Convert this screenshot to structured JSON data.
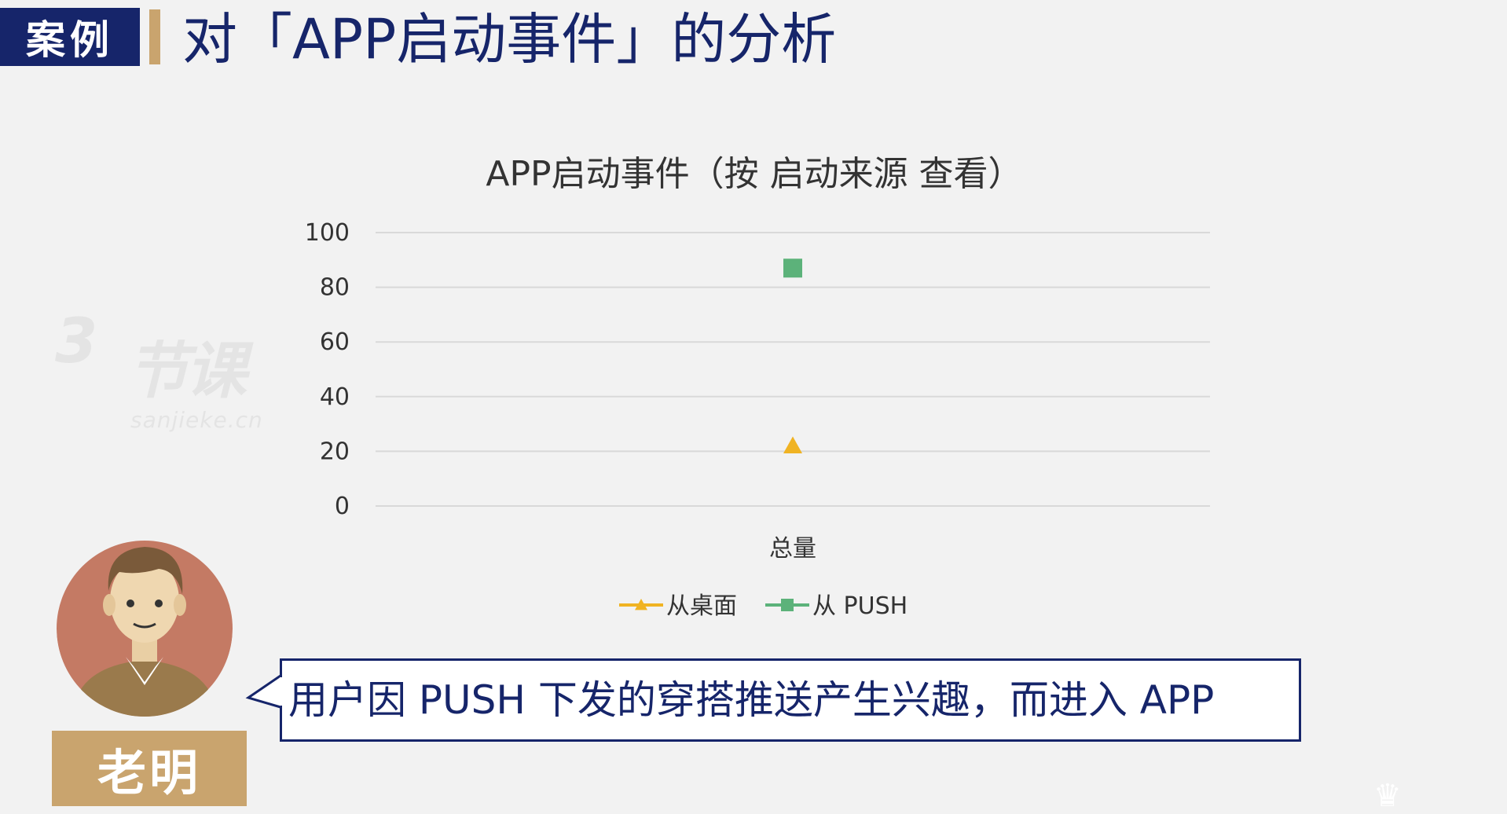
{
  "header": {
    "tag": "案例",
    "title": "对「APP启动事件」的分析"
  },
  "watermark": {
    "logo_numeral": "3",
    "logo_text": "节课",
    "site": "sanjieke.cn"
  },
  "chart_data": {
    "type": "scatter",
    "title": "APP启动事件（按 启动来源 查看）",
    "categories": [
      "总量"
    ],
    "xlabel": "",
    "ylabel": "",
    "ylim": [
      0,
      100
    ],
    "yticks": [
      0,
      20,
      40,
      60,
      80,
      100
    ],
    "grid": true,
    "legend_position": "bottom",
    "series": [
      {
        "name": "从桌面",
        "marker": "triangle",
        "color": "#f0b323",
        "values": [
          22
        ]
      },
      {
        "name": "从 PUSH",
        "marker": "square",
        "color": "#5cb27a",
        "values": [
          87
        ]
      }
    ]
  },
  "speaker": {
    "name": "老明"
  },
  "bubble": {
    "text": "用户因 PUSH 下发的穿搭推送产生兴趣，而进入 APP"
  },
  "colors": {
    "navy": "#16256a",
    "gold": "#c9a46e",
    "grid": "#d9d9d9"
  }
}
